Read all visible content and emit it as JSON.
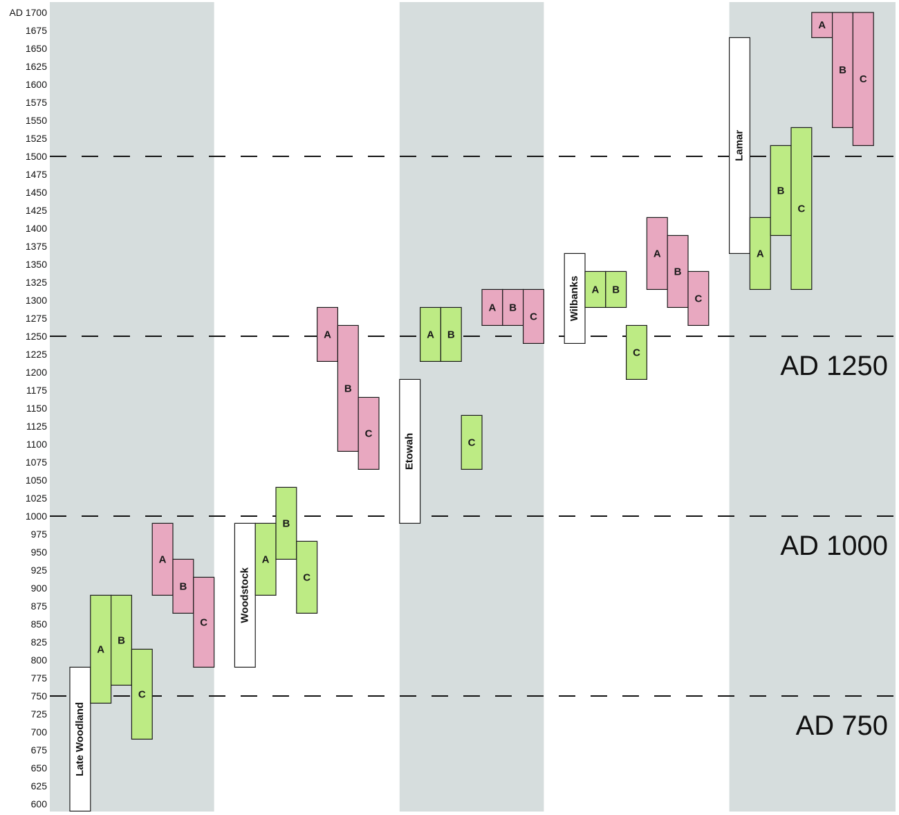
{
  "chart_data": {
    "type": "bar",
    "orientation": "floating-range",
    "y_axis": {
      "ylim": [
        595,
        1700
      ],
      "ticks": [
        600,
        625,
        650,
        675,
        700,
        725,
        750,
        775,
        800,
        825,
        850,
        875,
        900,
        925,
        950,
        975,
        1000,
        1025,
        1050,
        1075,
        1100,
        1125,
        1150,
        1175,
        1200,
        1225,
        1250,
        1275,
        1300,
        1325,
        1350,
        1375,
        1400,
        1425,
        1450,
        1475,
        1500,
        1525,
        1550,
        1575,
        1600,
        1625,
        1650,
        1675,
        1700
      ],
      "tick_labels": [
        "600",
        "625",
        "650",
        "675",
        "700",
        "725",
        "750",
        "775",
        "800",
        "825",
        "850",
        "875",
        "900",
        "925",
        "950",
        "975",
        "1000",
        "1025",
        "1050",
        "1075",
        "1100",
        "1125",
        "1150",
        "1175",
        "1200",
        "1225",
        "1250",
        "1275",
        "1300",
        "1325",
        "1350",
        "1375",
        "1400",
        "1425",
        "1450",
        "1475",
        "1500",
        "1525",
        "1550",
        "1575",
        "1600",
        "1625",
        "1650",
        "1675",
        "AD 1700"
      ]
    },
    "reference_lines": [
      {
        "value": 1500,
        "label": ""
      },
      {
        "value": 1250,
        "label": "AD 1250"
      },
      {
        "value": 1000,
        "label": "AD 1000"
      },
      {
        "value": 750,
        "label": "AD 750"
      }
    ],
    "colors": {
      "pink": "#e8a8c0",
      "green": "#bdeb84",
      "white": "#ffffff",
      "band": "#d6dddd",
      "stroke": "#1a1a1a"
    },
    "bars": [
      {
        "label": "Late Woodland",
        "kind": "phase",
        "color": "white",
        "slot": 0,
        "start": 590,
        "end": 790
      },
      {
        "label": "A",
        "kind": "range",
        "color": "green",
        "slot": 1,
        "start": 740,
        "end": 890
      },
      {
        "label": "B",
        "kind": "range",
        "color": "green",
        "slot": 2,
        "start": 765,
        "end": 890
      },
      {
        "label": "C",
        "kind": "range",
        "color": "green",
        "slot": 3,
        "start": 690,
        "end": 815
      },
      {
        "label": "A",
        "kind": "range",
        "color": "pink",
        "slot": 4,
        "start": 890,
        "end": 990
      },
      {
        "label": "B",
        "kind": "range",
        "color": "pink",
        "slot": 5,
        "start": 865,
        "end": 940
      },
      {
        "label": "C",
        "kind": "range",
        "color": "pink",
        "slot": 6,
        "start": 790,
        "end": 915
      },
      {
        "label": "Woodstock",
        "kind": "phase",
        "color": "white",
        "slot": 8,
        "start": 790,
        "end": 990
      },
      {
        "label": "A",
        "kind": "range",
        "color": "green",
        "slot": 9,
        "start": 890,
        "end": 990
      },
      {
        "label": "B",
        "kind": "range",
        "color": "green",
        "slot": 10,
        "start": 940,
        "end": 1040
      },
      {
        "label": "C",
        "kind": "range",
        "color": "green",
        "slot": 11,
        "start": 865,
        "end": 965
      },
      {
        "label": "A",
        "kind": "range",
        "color": "pink",
        "slot": 12,
        "start": 1215,
        "end": 1290
      },
      {
        "label": "B",
        "kind": "range",
        "color": "pink",
        "slot": 13,
        "start": 1090,
        "end": 1265
      },
      {
        "label": "C",
        "kind": "range",
        "color": "pink",
        "slot": 14,
        "start": 1065,
        "end": 1165
      },
      {
        "label": "Etowah",
        "kind": "phase",
        "color": "white",
        "slot": 16,
        "start": 990,
        "end": 1190
      },
      {
        "label": "A",
        "kind": "range",
        "color": "green",
        "slot": 17,
        "start": 1215,
        "end": 1290
      },
      {
        "label": "B",
        "kind": "range",
        "color": "green",
        "slot": 18,
        "start": 1215,
        "end": 1290
      },
      {
        "label": "C",
        "kind": "range",
        "color": "green",
        "slot": 19,
        "start": 1065,
        "end": 1140
      },
      {
        "label": "A",
        "kind": "range",
        "color": "pink",
        "slot": 20,
        "start": 1265,
        "end": 1315
      },
      {
        "label": "B",
        "kind": "range",
        "color": "pink",
        "slot": 21,
        "start": 1265,
        "end": 1315
      },
      {
        "label": "C",
        "kind": "range",
        "color": "pink",
        "slot": 22,
        "start": 1240,
        "end": 1315
      },
      {
        "label": "Wilbanks",
        "kind": "phase",
        "color": "white",
        "slot": 24,
        "start": 1240,
        "end": 1365
      },
      {
        "label": "A",
        "kind": "range",
        "color": "green",
        "slot": 25,
        "start": 1290,
        "end": 1340
      },
      {
        "label": "B",
        "kind": "range",
        "color": "green",
        "slot": 26,
        "start": 1290,
        "end": 1340
      },
      {
        "label": "C",
        "kind": "range",
        "color": "green",
        "slot": 27,
        "start": 1190,
        "end": 1265
      },
      {
        "label": "A",
        "kind": "range",
        "color": "pink",
        "slot": 28,
        "start": 1315,
        "end": 1415
      },
      {
        "label": "B",
        "kind": "range",
        "color": "pink",
        "slot": 29,
        "start": 1290,
        "end": 1390
      },
      {
        "label": "C",
        "kind": "range",
        "color": "pink",
        "slot": 30,
        "start": 1265,
        "end": 1340
      },
      {
        "label": "Lamar",
        "kind": "phase",
        "color": "white",
        "slot": 32,
        "start": 1365,
        "end": 1665
      },
      {
        "label": "A",
        "kind": "range",
        "color": "green",
        "slot": 33,
        "start": 1315,
        "end": 1415
      },
      {
        "label": "B",
        "kind": "range",
        "color": "green",
        "slot": 34,
        "start": 1390,
        "end": 1515
      },
      {
        "label": "C",
        "kind": "range",
        "color": "green",
        "slot": 35,
        "start": 1315,
        "end": 1540
      },
      {
        "label": "A",
        "kind": "range",
        "color": "pink",
        "slot": 36,
        "start": 1665,
        "end": 1700
      },
      {
        "label": "B",
        "kind": "range",
        "color": "pink",
        "slot": 37,
        "start": 1540,
        "end": 1700
      },
      {
        "label": "C",
        "kind": "range",
        "color": "pink",
        "slot": 38,
        "start": 1515,
        "end": 1700
      }
    ],
    "shaded_bands_slots": [
      [
        0,
        7
      ],
      [
        16,
        23
      ],
      [
        32,
        39
      ]
    ]
  }
}
